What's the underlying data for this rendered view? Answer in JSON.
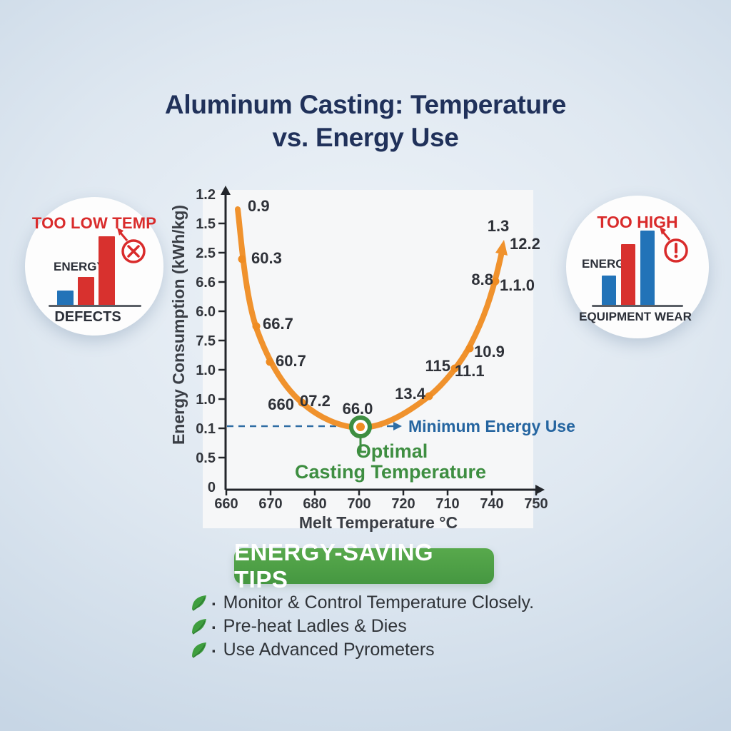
{
  "title": {
    "line1": "Aluminum Casting: Temperature",
    "line2": "vs. Energy Use"
  },
  "colors": {
    "blue": "#2273b8",
    "red": "#d8312e",
    "orange": "#f0922d",
    "banner_green": "#4a9e41",
    "text_green": "#3e8e41",
    "navy": "#20315a",
    "link_blue": "#2565a0"
  },
  "chart_data": {
    "type": "line",
    "title": "",
    "xlabel": "Melt Temperature °C",
    "ylabel": "Energy Consumption (kWh/kg)",
    "x_ticks": [
      "660",
      "670",
      "680",
      "700",
      "720",
      "710",
      "740",
      "750"
    ],
    "y_ticks": [
      "1.2",
      "1.5",
      "2.5",
      "6.6",
      "6.0",
      "7.5",
      "1.0",
      "1.0",
      "0.1",
      "0.5",
      "0"
    ],
    "grid": false,
    "legend": "none",
    "series": [
      {
        "name": "Energy consumption vs melt temperature",
        "color": "#f0922d",
        "shape": "U-shaped curve with minimum near the 700 tick",
        "points": [
          {
            "x": 662,
            "label": "0.9"
          },
          {
            "x": 663,
            "label": "60.3"
          },
          {
            "x": 666,
            "label": "66.7"
          },
          {
            "x": 668,
            "label": "60.7"
          },
          {
            "x": 675,
            "label": "660"
          },
          {
            "x": 677,
            "label": "07.2"
          },
          {
            "x": 700,
            "label": "66.0"
          },
          {
            "x": 716,
            "label": "13.4"
          },
          {
            "x": 720,
            "label": "115"
          },
          {
            "x": 721,
            "label": "11.1"
          },
          {
            "x": 724,
            "label": "10.9"
          },
          {
            "x": 729,
            "label": "8.8"
          },
          {
            "x": 731,
            "label": "1.1.0"
          },
          {
            "x": 740,
            "label": "1.3"
          },
          {
            "x": 742,
            "label": "12.2"
          }
        ]
      }
    ],
    "annotations": {
      "min_energy": "Minimum Energy Use",
      "optimal_line1": "Optimal",
      "optimal_line2": "Casting Temperature"
    }
  },
  "badge_low": {
    "title": "TOO LOW TEMP",
    "label_top": "ENERGY",
    "label_bottom": "DEFECTS",
    "icon": "x-circle",
    "bars": [
      {
        "color": "blue",
        "h": 21
      },
      {
        "color": "red",
        "h": 40
      },
      {
        "color": "red",
        "h": 97
      }
    ]
  },
  "badge_high": {
    "title": "TOO HIGH",
    "label_top": "ENERGY",
    "label_bottom": "EQUIPMENT WEAR",
    "icon": "exclamation-circle",
    "bars": [
      {
        "color": "blue",
        "h": 42
      },
      {
        "color": "red",
        "h": 86
      },
      {
        "color": "blue",
        "h": 105
      }
    ]
  },
  "tips": {
    "banner": "ENERGY-SAVING TIPS",
    "items": [
      {
        "bullet": ".",
        "text": "Monitor & Control Temperature Closely."
      },
      {
        "bullet": ".",
        "text": "Pre-heat Ladles & Dies"
      },
      {
        "bullet": ".",
        "text": "Use Advanced Pyrometers"
      }
    ]
  }
}
